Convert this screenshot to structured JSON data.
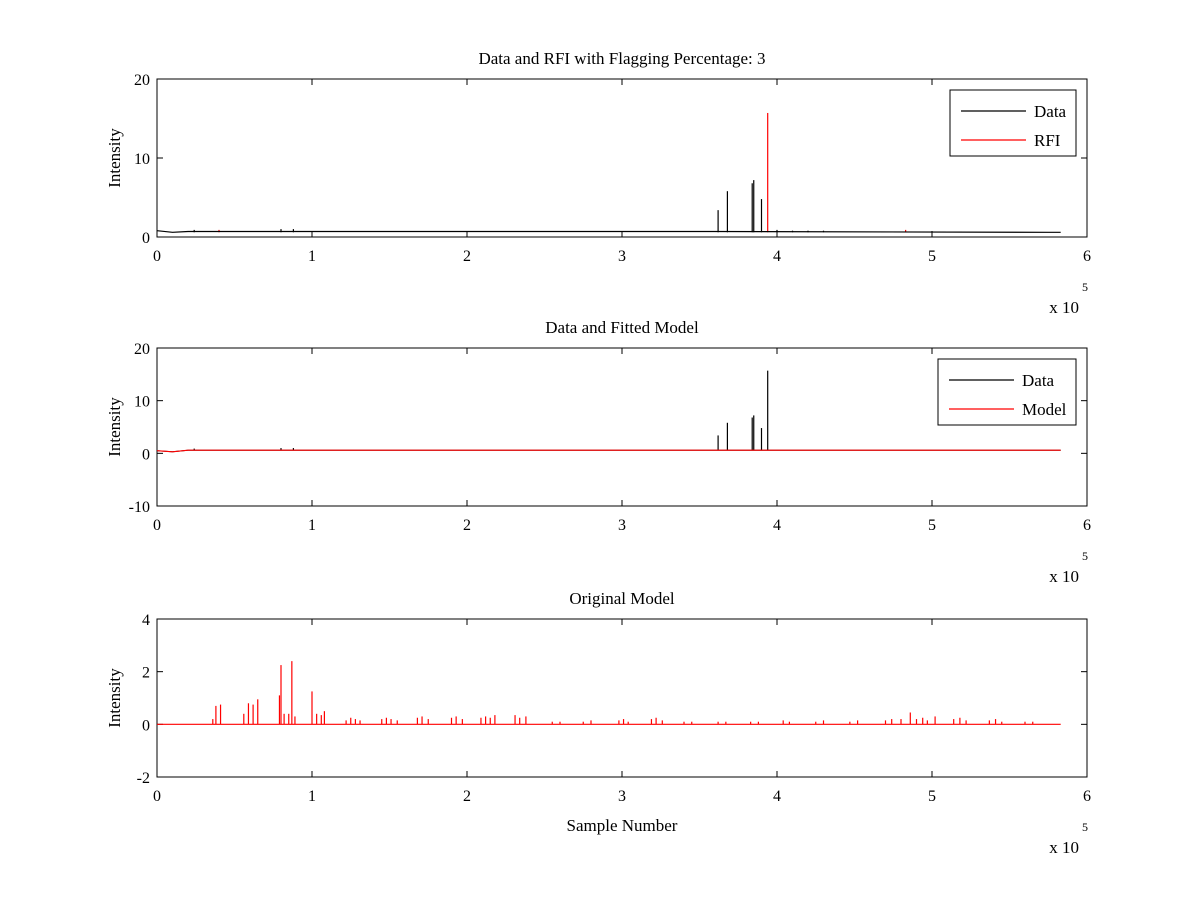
{
  "colors": {
    "data": "#000000",
    "rfi": "#ff0000",
    "model": "#ff0000",
    "axes": "#000000"
  },
  "chart_data": [
    {
      "type": "line",
      "title": "Data and RFI with Flagging Percentage: 3",
      "xlabel": "",
      "ylabel": "Intensity",
      "xlim": [
        0,
        600000
      ],
      "ylim": [
        0,
        20
      ],
      "xticks": [
        0,
        100000,
        200000,
        300000,
        400000,
        500000,
        600000
      ],
      "xtick_labels": [
        "0",
        "1",
        "2",
        "3",
        "4",
        "5",
        "6"
      ],
      "yticks": [
        0,
        10,
        20
      ],
      "ytick_labels": [
        "0",
        "10",
        "20"
      ],
      "x_multiplier": {
        "base": "x 10",
        "exponent": "5"
      },
      "legend": {
        "position": "top-right",
        "entries": [
          "Data",
          "RFI"
        ]
      },
      "baseline": {
        "x": [
          0,
          10000,
          20000,
          360000,
          575000,
          583000
        ],
        "y": [
          0.8,
          0.6,
          0.7,
          0.7,
          0.6,
          0.6
        ]
      },
      "series": [
        {
          "name": "Data",
          "color": "#000000",
          "spikes": [
            [
              362000,
              3.4
            ],
            [
              368000,
              5.8
            ],
            [
              384000,
              6.8
            ],
            [
              385000,
              7.2
            ],
            [
              390000,
              4.8
            ],
            [
              80000,
              1.0
            ],
            [
              88000,
              1.0
            ],
            [
              24000,
              0.9
            ],
            [
              400000,
              0.9
            ],
            [
              410000,
              0.8
            ],
            [
              420000,
              0.8
            ],
            [
              430000,
              0.8
            ]
          ]
        },
        {
          "name": "RFI",
          "color": "#ff0000",
          "spikes": [
            [
              394000,
              15.7
            ],
            [
              40000,
              0.9
            ],
            [
              483000,
              0.9
            ]
          ]
        }
      ]
    },
    {
      "type": "line",
      "title": "Data and Fitted Model",
      "xlabel": "",
      "ylabel": "Intensity",
      "xlim": [
        0,
        600000
      ],
      "ylim": [
        -10,
        20
      ],
      "xticks": [
        0,
        100000,
        200000,
        300000,
        400000,
        500000,
        600000
      ],
      "xtick_labels": [
        "0",
        "1",
        "2",
        "3",
        "4",
        "5",
        "6"
      ],
      "yticks": [
        -10,
        0,
        10,
        20
      ],
      "ytick_labels": [
        "-10",
        "0",
        "10",
        "20"
      ],
      "x_multiplier": {
        "base": "x 10",
        "exponent": "5"
      },
      "legend": {
        "position": "top-right",
        "entries": [
          "Data",
          "Model"
        ]
      },
      "baseline": {
        "x": [
          0,
          10000,
          20000,
          583000
        ],
        "y": [
          0.5,
          0.3,
          0.6,
          0.6
        ]
      },
      "series": [
        {
          "name": "Data",
          "color": "#000000",
          "spikes": [
            [
              362000,
              3.4
            ],
            [
              368000,
              5.8
            ],
            [
              384000,
              6.8
            ],
            [
              385000,
              7.2
            ],
            [
              390000,
              4.8
            ],
            [
              394000,
              15.7
            ],
            [
              80000,
              1.0
            ],
            [
              88000,
              1.0
            ],
            [
              24000,
              0.9
            ]
          ]
        },
        {
          "name": "Model",
          "color": "#ff0000",
          "spikes": []
        }
      ]
    },
    {
      "type": "line",
      "title": "Original Model",
      "xlabel": "Sample Number",
      "ylabel": "Intensity",
      "xlim": [
        0,
        600000
      ],
      "ylim": [
        -2,
        4
      ],
      "xticks": [
        0,
        100000,
        200000,
        300000,
        400000,
        500000,
        600000
      ],
      "xtick_labels": [
        "0",
        "1",
        "2",
        "3",
        "4",
        "5",
        "6"
      ],
      "yticks": [
        -2,
        0,
        2,
        4
      ],
      "ytick_labels": [
        "-2",
        "0",
        "2",
        "4"
      ],
      "x_multiplier": {
        "base": "x 10",
        "exponent": "5"
      },
      "legend": null,
      "baseline": {
        "x": [
          0,
          583000
        ],
        "y": [
          0,
          0
        ]
      },
      "series": [
        {
          "name": "",
          "color": "#ff0000",
          "spikes": [
            [
              36000,
              0.2
            ],
            [
              38000,
              0.7
            ],
            [
              41000,
              0.75
            ],
            [
              56000,
              0.4
            ],
            [
              59000,
              0.8
            ],
            [
              62000,
              0.75
            ],
            [
              65000,
              0.95
            ],
            [
              79000,
              1.1
            ],
            [
              80000,
              2.25
            ],
            [
              82000,
              0.4
            ],
            [
              85000,
              0.4
            ],
            [
              87000,
              2.4
            ],
            [
              89000,
              0.3
            ],
            [
              100000,
              1.25
            ],
            [
              103000,
              0.4
            ],
            [
              106000,
              0.35
            ],
            [
              108000,
              0.5
            ],
            [
              122000,
              0.15
            ],
            [
              125000,
              0.25
            ],
            [
              128000,
              0.2
            ],
            [
              131000,
              0.15
            ],
            [
              145000,
              0.2
            ],
            [
              148000,
              0.25
            ],
            [
              151000,
              0.2
            ],
            [
              155000,
              0.15
            ],
            [
              168000,
              0.25
            ],
            [
              171000,
              0.3
            ],
            [
              175000,
              0.2
            ],
            [
              190000,
              0.25
            ],
            [
              193000,
              0.3
            ],
            [
              197000,
              0.2
            ],
            [
              209000,
              0.25
            ],
            [
              212000,
              0.3
            ],
            [
              215000,
              0.25
            ],
            [
              218000,
              0.35
            ],
            [
              231000,
              0.35
            ],
            [
              234000,
              0.25
            ],
            [
              238000,
              0.3
            ],
            [
              255000,
              0.1
            ],
            [
              260000,
              0.1
            ],
            [
              275000,
              0.1
            ],
            [
              280000,
              0.15
            ],
            [
              298000,
              0.15
            ],
            [
              301000,
              0.2
            ],
            [
              304000,
              0.1
            ],
            [
              319000,
              0.2
            ],
            [
              322000,
              0.25
            ],
            [
              326000,
              0.15
            ],
            [
              340000,
              0.1
            ],
            [
              345000,
              0.1
            ],
            [
              362000,
              0.1
            ],
            [
              367000,
              0.1
            ],
            [
              383000,
              0.1
            ],
            [
              388000,
              0.1
            ],
            [
              404000,
              0.15
            ],
            [
              408000,
              0.1
            ],
            [
              425000,
              0.1
            ],
            [
              430000,
              0.15
            ],
            [
              447000,
              0.1
            ],
            [
              452000,
              0.15
            ],
            [
              470000,
              0.15
            ],
            [
              474000,
              0.2
            ],
            [
              480000,
              0.2
            ],
            [
              486000,
              0.45
            ],
            [
              490000,
              0.2
            ],
            [
              494000,
              0.25
            ],
            [
              497000,
              0.15
            ],
            [
              502000,
              0.3
            ],
            [
              514000,
              0.2
            ],
            [
              518000,
              0.25
            ],
            [
              522000,
              0.15
            ],
            [
              537000,
              0.15
            ],
            [
              541000,
              0.2
            ],
            [
              545000,
              0.1
            ],
            [
              560000,
              0.1
            ],
            [
              565000,
              0.1
            ]
          ]
        }
      ]
    }
  ]
}
